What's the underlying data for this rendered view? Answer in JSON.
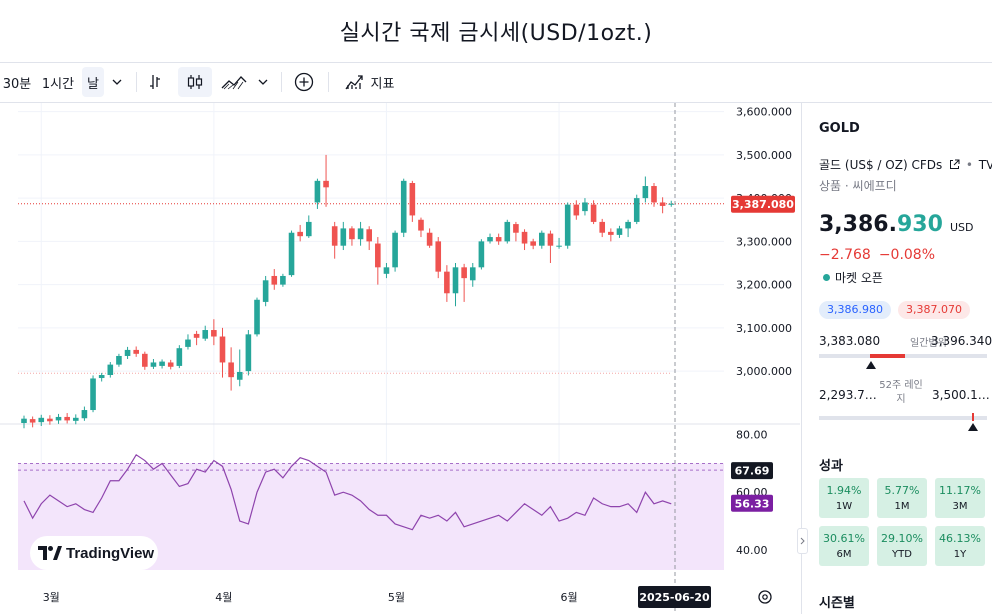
{
  "page_title": "실시간 국제 금시세(USD/1ozt.)",
  "toolbar": {
    "interval_30m": "30분",
    "interval_1h": "1시간",
    "interval_day": "날",
    "indicators_label": "지표",
    "icons": [
      "chevron-down-icon",
      "bar-style-icon",
      "candle-style-icon",
      "area-style-icon",
      "chevron-down-icon",
      "add-compare-icon",
      "indicators-icon"
    ]
  },
  "chart": {
    "watermark": "TradingView",
    "date_badge": "2025-06-20",
    "price_badge": "3,387.080",
    "rsi_badge_1": "67.69",
    "rsi_badge_2": "56.33",
    "settings_icon": "settings-icon",
    "colors": {
      "up": "#26a69a",
      "down": "#ef5350",
      "rsi_line": "#8e44ad",
      "rsi_band": "#f3e5fb",
      "badge_price": "#e53935",
      "badge_rsi1": "#131722",
      "badge_rsi2": "#7b1fa2"
    }
  },
  "chart_data": {
    "type": "candlestick",
    "price_axis": [
      "3,600.000",
      "3,500.000",
      "3,400.000",
      "3,300.000",
      "3,200.000",
      "3,100.000",
      "3,000.000"
    ],
    "rsi_axis": [
      "80.00",
      "60.00",
      "40.00"
    ],
    "x_labels": [
      "3월",
      "4월",
      "5월",
      "6월"
    ],
    "ylim": [
      2880,
      3620
    ],
    "rsi_ylim": [
      33,
      83
    ],
    "last_price": 3387.08,
    "reference_line": 2995,
    "rsi_levels": [
      70,
      67.69
    ],
    "candles": [
      {
        "o": 2880,
        "c": 2890,
        "h": 2897,
        "l": 2868
      },
      {
        "o": 2889,
        "c": 2881,
        "h": 2895,
        "l": 2870
      },
      {
        "o": 2882,
        "c": 2892,
        "h": 2899,
        "l": 2873
      },
      {
        "o": 2890,
        "c": 2884,
        "h": 2898,
        "l": 2876
      },
      {
        "o": 2886,
        "c": 2894,
        "h": 2901,
        "l": 2878
      },
      {
        "o": 2894,
        "c": 2886,
        "h": 2903,
        "l": 2879
      },
      {
        "o": 2885,
        "c": 2892,
        "h": 2900,
        "l": 2877
      },
      {
        "o": 2891,
        "c": 2910,
        "h": 2918,
        "l": 2885
      },
      {
        "o": 2910,
        "c": 2983,
        "h": 2990,
        "l": 2905
      },
      {
        "o": 2984,
        "c": 2991,
        "h": 2996,
        "l": 2976
      },
      {
        "o": 2991,
        "c": 3015,
        "h": 3021,
        "l": 2985
      },
      {
        "o": 3015,
        "c": 3035,
        "h": 3040,
        "l": 3010
      },
      {
        "o": 3035,
        "c": 3049,
        "h": 3056,
        "l": 3028
      },
      {
        "o": 3049,
        "c": 3040,
        "h": 3057,
        "l": 3033
      },
      {
        "o": 3040,
        "c": 3010,
        "h": 3045,
        "l": 3003
      },
      {
        "o": 3010,
        "c": 3020,
        "h": 3028,
        "l": 3005
      },
      {
        "o": 3012,
        "c": 3022,
        "h": 3027,
        "l": 3006
      },
      {
        "o": 3020,
        "c": 3010,
        "h": 3026,
        "l": 3004
      },
      {
        "o": 3012,
        "c": 3053,
        "h": 3060,
        "l": 3007
      },
      {
        "o": 3056,
        "c": 3073,
        "h": 3085,
        "l": 3050
      },
      {
        "o": 3086,
        "c": 3077,
        "h": 3093,
        "l": 3060
      },
      {
        "o": 3075,
        "c": 3095,
        "h": 3105,
        "l": 3070
      },
      {
        "o": 3095,
        "c": 3080,
        "h": 3120,
        "l": 3060
      },
      {
        "o": 3080,
        "c": 3020,
        "h": 3100,
        "l": 2985
      },
      {
        "o": 3020,
        "c": 2986,
        "h": 3055,
        "l": 2955
      },
      {
        "o": 2980,
        "c": 2998,
        "h": 3050,
        "l": 2965
      },
      {
        "o": 3000,
        "c": 3085,
        "h": 3095,
        "l": 2990
      },
      {
        "o": 3085,
        "c": 3165,
        "h": 3170,
        "l": 3080
      },
      {
        "o": 3160,
        "c": 3210,
        "h": 3220,
        "l": 3150
      },
      {
        "o": 3220,
        "c": 3200,
        "h": 3236,
        "l": 3188
      },
      {
        "o": 3200,
        "c": 3220,
        "h": 3225,
        "l": 3195
      },
      {
        "o": 3222,
        "c": 3320,
        "h": 3325,
        "l": 3218
      },
      {
        "o": 3322,
        "c": 3312,
        "h": 3338,
        "l": 3300
      },
      {
        "o": 3312,
        "c": 3345,
        "h": 3360,
        "l": 3308
      },
      {
        "o": 3390,
        "c": 3440,
        "h": 3445,
        "l": 3375
      },
      {
        "o": 3440,
        "c": 3425,
        "h": 3500,
        "l": 3380
      },
      {
        "o": 3335,
        "c": 3290,
        "h": 3345,
        "l": 3260
      },
      {
        "o": 3290,
        "c": 3330,
        "h": 3345,
        "l": 3280
      },
      {
        "o": 3330,
        "c": 3305,
        "h": 3335,
        "l": 3290
      },
      {
        "o": 3305,
        "c": 3330,
        "h": 3345,
        "l": 3290
      },
      {
        "o": 3328,
        "c": 3300,
        "h": 3335,
        "l": 3280
      },
      {
        "o": 3295,
        "c": 3240,
        "h": 3310,
        "l": 3200
      },
      {
        "o": 3225,
        "c": 3240,
        "h": 3250,
        "l": 3215
      },
      {
        "o": 3240,
        "c": 3320,
        "h": 3325,
        "l": 3230
      },
      {
        "o": 3320,
        "c": 3440,
        "h": 3445,
        "l": 3310
      },
      {
        "o": 3435,
        "c": 3360,
        "h": 3440,
        "l": 3345
      },
      {
        "o": 3350,
        "c": 3325,
        "h": 3355,
        "l": 3310
      },
      {
        "o": 3320,
        "c": 3290,
        "h": 3330,
        "l": 3285
      },
      {
        "o": 3300,
        "c": 3230,
        "h": 3310,
        "l": 3215
      },
      {
        "o": 3230,
        "c": 3180,
        "h": 3245,
        "l": 3160
      },
      {
        "o": 3180,
        "c": 3240,
        "h": 3250,
        "l": 3150
      },
      {
        "o": 3240,
        "c": 3215,
        "h": 3248,
        "l": 3160
      },
      {
        "o": 3210,
        "c": 3240,
        "h": 3250,
        "l": 3195
      },
      {
        "o": 3240,
        "c": 3300,
        "h": 3305,
        "l": 3235
      },
      {
        "o": 3300,
        "c": 3310,
        "h": 3318,
        "l": 3295
      },
      {
        "o": 3310,
        "c": 3300,
        "h": 3318,
        "l": 3292
      },
      {
        "o": 3300,
        "c": 3345,
        "h": 3350,
        "l": 3295
      },
      {
        "o": 3340,
        "c": 3320,
        "h": 3345,
        "l": 3300
      },
      {
        "o": 3322,
        "c": 3295,
        "h": 3328,
        "l": 3280
      },
      {
        "o": 3300,
        "c": 3290,
        "h": 3306,
        "l": 3282
      },
      {
        "o": 3290,
        "c": 3320,
        "h": 3325,
        "l": 3283
      },
      {
        "o": 3318,
        "c": 3290,
        "h": 3325,
        "l": 3250
      },
      {
        "o": 3290,
        "c": 3290,
        "h": 3308,
        "l": 3283
      },
      {
        "o": 3290,
        "c": 3385,
        "h": 3390,
        "l": 3283
      },
      {
        "o": 3385,
        "c": 3360,
        "h": 3395,
        "l": 3350
      },
      {
        "o": 3370,
        "c": 3390,
        "h": 3400,
        "l": 3360
      },
      {
        "o": 3385,
        "c": 3345,
        "h": 3395,
        "l": 3340
      },
      {
        "o": 3345,
        "c": 3320,
        "h": 3352,
        "l": 3310
      },
      {
        "o": 3322,
        "c": 3315,
        "h": 3330,
        "l": 3300
      },
      {
        "o": 3315,
        "c": 3330,
        "h": 3336,
        "l": 3308
      },
      {
        "o": 3330,
        "c": 3345,
        "h": 3350,
        "l": 3310
      },
      {
        "o": 3345,
        "c": 3400,
        "h": 3408,
        "l": 3340
      },
      {
        "o": 3400,
        "c": 3428,
        "h": 3450,
        "l": 3390
      },
      {
        "o": 3428,
        "c": 3390,
        "h": 3435,
        "l": 3380
      },
      {
        "o": 3390,
        "c": 3382,
        "h": 3402,
        "l": 3365
      },
      {
        "o": 3387,
        "c": 3387,
        "h": 3394,
        "l": 3380
      }
    ],
    "rsi": [
      57,
      51,
      56,
      59,
      57,
      55,
      56,
      54,
      53,
      58,
      64,
      64,
      68,
      73,
      71,
      68,
      70,
      66,
      62,
      63,
      68,
      67,
      71,
      69,
      61,
      50,
      49,
      60,
      67,
      68,
      65,
      69,
      72,
      71,
      69,
      67,
      59,
      60,
      59,
      57,
      54,
      52,
      52,
      49,
      48,
      47,
      52,
      51,
      52,
      50,
      53,
      48,
      49,
      50,
      51,
      52,
      50,
      53,
      56,
      54,
      52,
      55,
      50,
      51,
      53,
      52,
      58,
      56,
      55,
      55,
      56,
      53,
      60,
      56,
      57,
      56
    ]
  },
  "sidebar": {
    "symbol": "GOLD",
    "description": "골드 (US$ / OZ) CFDs",
    "source": "TVC",
    "category": "상품 · 씨에프디",
    "price_main": "3,386.",
    "price_decimal": "930",
    "currency": "USD",
    "change": "−2.768",
    "change_pct": "−0.08%",
    "market_status": "마켓 오픈",
    "bid": "3,386.980",
    "ask": "3,387.070",
    "day_low": "3,383.080",
    "day_range_label": "일간범위",
    "day_high": "3,396.340",
    "week52_low": "2,293.7…",
    "week52_label": "52주 레인지",
    "week52_high": "3,500.1…",
    "performance_label": "성과",
    "performance": [
      {
        "value": "1.94%",
        "period": "1W"
      },
      {
        "value": "5.77%",
        "period": "1M"
      },
      {
        "value": "11.17%",
        "period": "3M"
      },
      {
        "value": "30.61%",
        "period": "6M"
      },
      {
        "value": "29.10%",
        "period": "YTD"
      },
      {
        "value": "46.13%",
        "period": "1Y"
      }
    ],
    "seasonal_label": "시즌별",
    "collapse_icon": "chevron-right-icon"
  }
}
